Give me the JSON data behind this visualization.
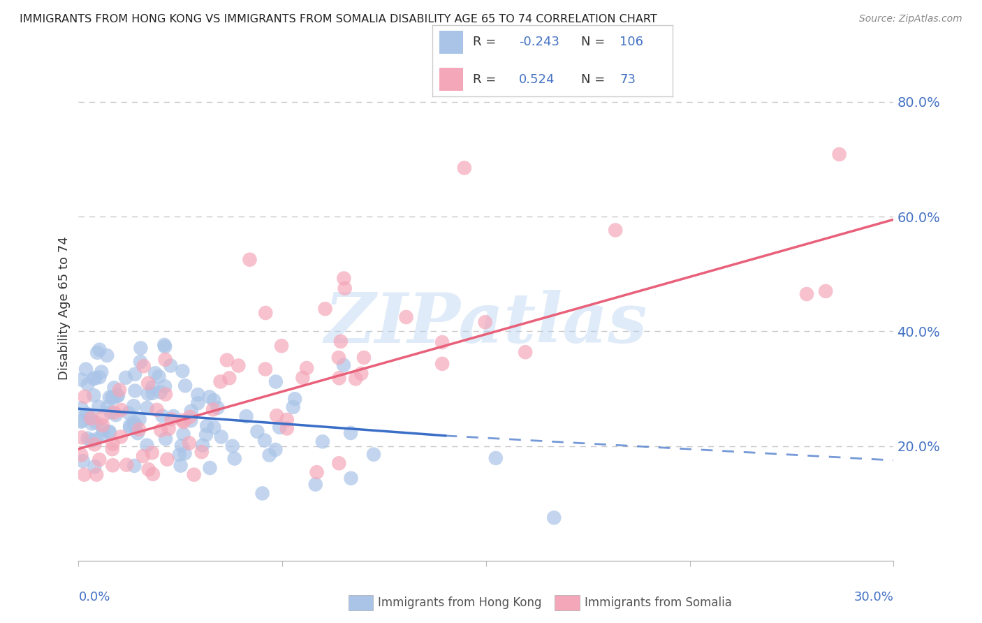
{
  "title": "IMMIGRANTS FROM HONG KONG VS IMMIGRANTS FROM SOMALIA DISABILITY AGE 65 TO 74 CORRELATION CHART",
  "source": "Source: ZipAtlas.com",
  "ylabel": "Disability Age 65 to 74",
  "ytick_positions": [
    0.8,
    0.6,
    0.4,
    0.2
  ],
  "ytick_labels": [
    "80.0%",
    "60.0%",
    "40.0%",
    "20.0%"
  ],
  "xlim": [
    0.0,
    0.3
  ],
  "ylim": [
    0.0,
    0.88
  ],
  "hk_R": -0.243,
  "hk_N": 106,
  "som_R": 0.524,
  "som_N": 73,
  "hk_color": "#aac4e8",
  "som_color": "#f4a7b9",
  "hk_line_color": "#3a6ec7",
  "som_line_color": "#e8607a",
  "watermark": "ZIPatlas",
  "background_color": "#ffffff",
  "grid_color": "#c8c8c8",
  "seed": 12345
}
